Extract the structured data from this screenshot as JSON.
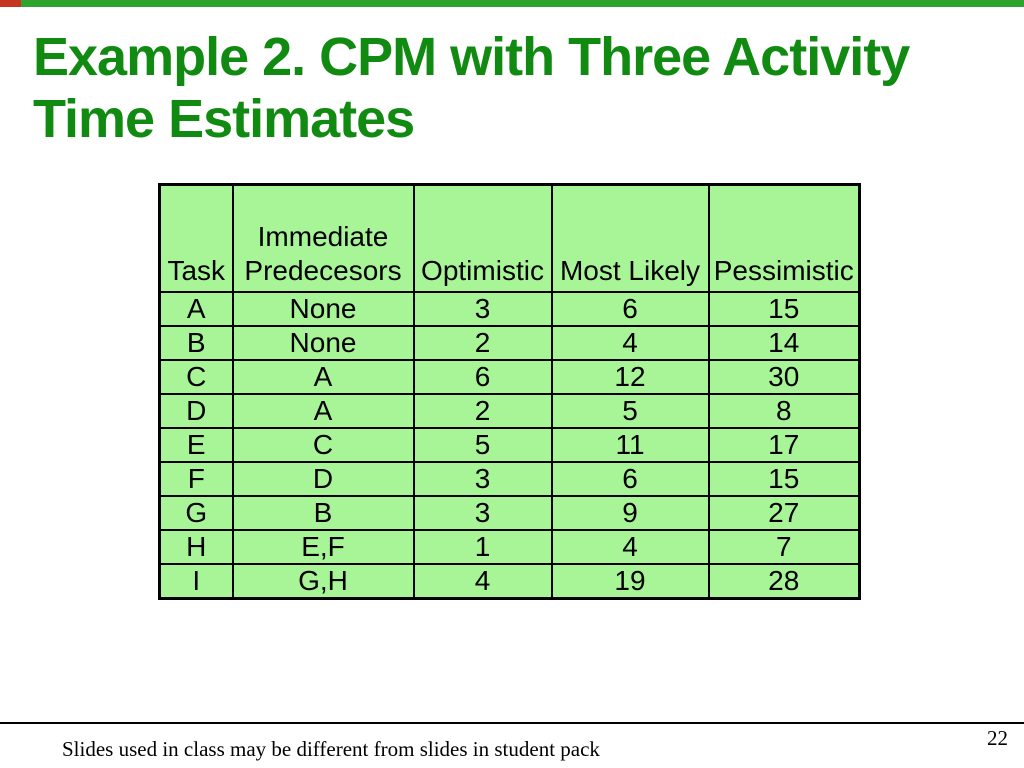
{
  "colors": {
    "title_green": "#118a11",
    "cell_green": "#a7f596",
    "strip_green": "#2ea32e",
    "strip_red": "#c5351f",
    "border_black": "#000000"
  },
  "title": {
    "lines": [
      "Example 2. CPM with Three Activity",
      "Time Estimates"
    ]
  },
  "table": {
    "headers": [
      "Task",
      "Immediate Predecesors",
      "Optimistic",
      "Most Likely",
      "Pessimistic"
    ],
    "rows": [
      [
        "A",
        "None",
        "3",
        "6",
        "15"
      ],
      [
        "B",
        "None",
        "2",
        "4",
        "14"
      ],
      [
        "C",
        "A",
        "6",
        "12",
        "30"
      ],
      [
        "D",
        "A",
        "2",
        "5",
        "8"
      ],
      [
        "E",
        "C",
        "5",
        "11",
        "17"
      ],
      [
        "F",
        "D",
        "3",
        "6",
        "15"
      ],
      [
        "G",
        "B",
        "3",
        "9",
        "27"
      ],
      [
        "H",
        "E,F",
        "1",
        "4",
        "7"
      ],
      [
        "I",
        "G,H",
        "4",
        "19",
        "28"
      ]
    ]
  },
  "footer": {
    "note": "Slides used in class may be different from slides in student pack",
    "page_number": "22"
  }
}
